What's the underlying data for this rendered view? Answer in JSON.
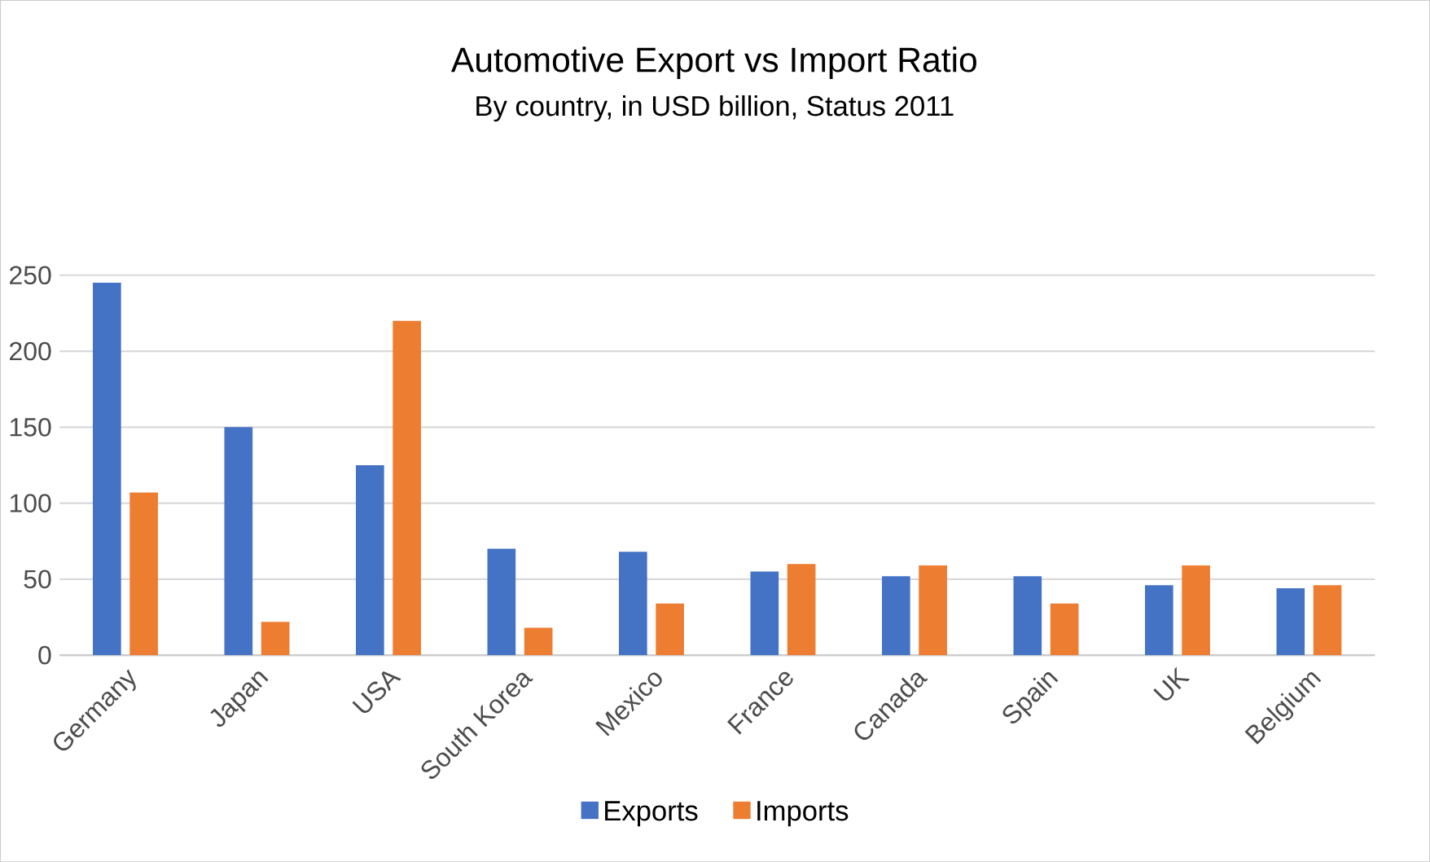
{
  "chart_data": {
    "type": "bar",
    "title": "Automotive Export vs Import Ratio",
    "subtitle": "By country, in USD billion, Status 2011",
    "categories": [
      "Germany",
      "Japan",
      "USA",
      "South Korea",
      "Mexico",
      "France",
      "Canada",
      "Spain",
      "UK",
      "Belgium"
    ],
    "series": [
      {
        "name": "Exports",
        "color": "#4472c4",
        "values": [
          245,
          150,
          125,
          70,
          68,
          55,
          52,
          52,
          46,
          44
        ]
      },
      {
        "name": "Imports",
        "color": "#ed7d31",
        "values": [
          107,
          22,
          220,
          18,
          34,
          60,
          59,
          34,
          59,
          46
        ]
      }
    ],
    "ylim": [
      0,
      250
    ],
    "yticks": [
      0,
      50,
      100,
      150,
      200,
      250
    ],
    "grid": "y",
    "legend": "bottom"
  }
}
